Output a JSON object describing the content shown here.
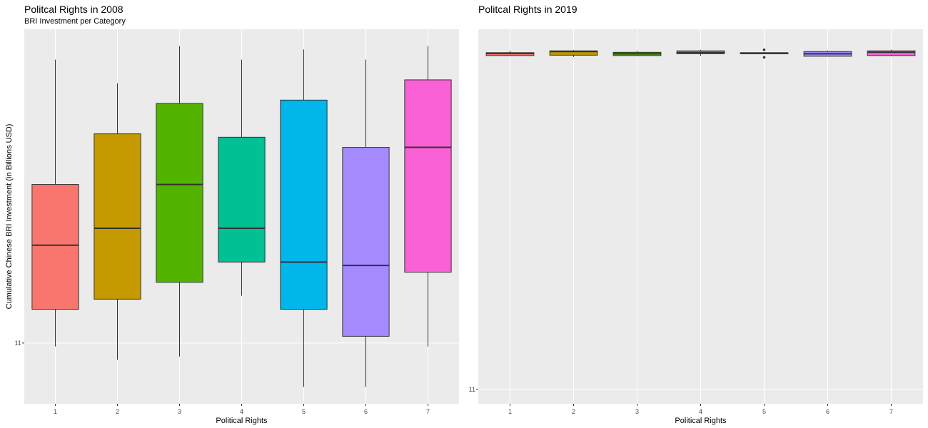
{
  "chart_data": [
    {
      "type": "boxplot",
      "title": "Politcal Rights in 2008",
      "subtitle": "BRI Investment per Category",
      "xlabel": "Political Rights",
      "ylabel": "Cumulative Chinese BRI Investment (in Billions USD)",
      "categories": [
        "1",
        "2",
        "3",
        "4",
        "5",
        "6",
        "7"
      ],
      "y_tick_labels": [
        "11"
      ],
      "ylim": [
        10.82,
        11.93
      ],
      "grid": true,
      "boxes": [
        {
          "category": "1",
          "min": 10.99,
          "q1": 11.1,
          "median": 11.29,
          "q3": 11.47,
          "max": 11.84,
          "color": "#F8766D"
        },
        {
          "category": "2",
          "min": 10.95,
          "q1": 11.13,
          "median": 11.34,
          "q3": 11.62,
          "max": 11.77,
          "color": "#C49A00"
        },
        {
          "category": "3",
          "min": 10.96,
          "q1": 11.18,
          "median": 11.47,
          "q3": 11.71,
          "max": 11.88,
          "color": "#53B400"
        },
        {
          "category": "4",
          "min": 11.14,
          "q1": 11.24,
          "median": 11.34,
          "q3": 11.61,
          "max": 11.84,
          "color": "#00C094"
        },
        {
          "category": "5",
          "min": 10.87,
          "q1": 11.1,
          "median": 11.24,
          "q3": 11.72,
          "max": 11.87,
          "color": "#00B6EB"
        },
        {
          "category": "6",
          "min": 10.87,
          "q1": 11.02,
          "median": 11.23,
          "q3": 11.58,
          "max": 11.84,
          "color": "#A58AFF"
        },
        {
          "category": "7",
          "min": 10.99,
          "q1": 11.21,
          "median": 11.58,
          "q3": 11.78,
          "max": 11.88,
          "color": "#FB61D7"
        }
      ]
    },
    {
      "type": "boxplot",
      "title": "Politcal Rights in 2019",
      "xlabel": "Political Rights",
      "ylabel": "",
      "categories": [
        "1",
        "2",
        "3",
        "4",
        "5",
        "6",
        "7"
      ],
      "y_tick_labels": [
        "11"
      ],
      "ylim": [
        10.96,
        12.0
      ],
      "grid": true,
      "boxes": [
        {
          "category": "1",
          "min": 11.925,
          "q1": 11.927,
          "median": 11.933,
          "q3": 11.935,
          "max": 11.94,
          "color": "#F8766D"
        },
        {
          "category": "2",
          "min": 11.923,
          "q1": 11.928,
          "median": 11.938,
          "q3": 11.94,
          "max": 11.942,
          "color": "#C49A00"
        },
        {
          "category": "3",
          "min": 11.925,
          "q1": 11.927,
          "median": 11.932,
          "q3": 11.936,
          "max": 11.94,
          "color": "#53B400"
        },
        {
          "category": "4",
          "min": 11.926,
          "q1": 11.932,
          "median": 11.935,
          "q3": 11.94,
          "max": 11.943,
          "color": "#00C094"
        },
        {
          "category": "5",
          "min": 11.931,
          "q1": 11.932,
          "median": 11.933,
          "q3": 11.935,
          "max": 11.936,
          "outliers": [
            11.922,
            11.943
          ],
          "color": "#00B6EB"
        },
        {
          "category": "6",
          "min": 11.924,
          "q1": 11.925,
          "median": 11.932,
          "q3": 11.938,
          "max": 11.941,
          "color": "#A58AFF"
        },
        {
          "category": "7",
          "min": 11.925,
          "q1": 11.927,
          "median": 11.936,
          "q3": 11.94,
          "max": 11.943,
          "color": "#FB61D7"
        }
      ]
    }
  ]
}
